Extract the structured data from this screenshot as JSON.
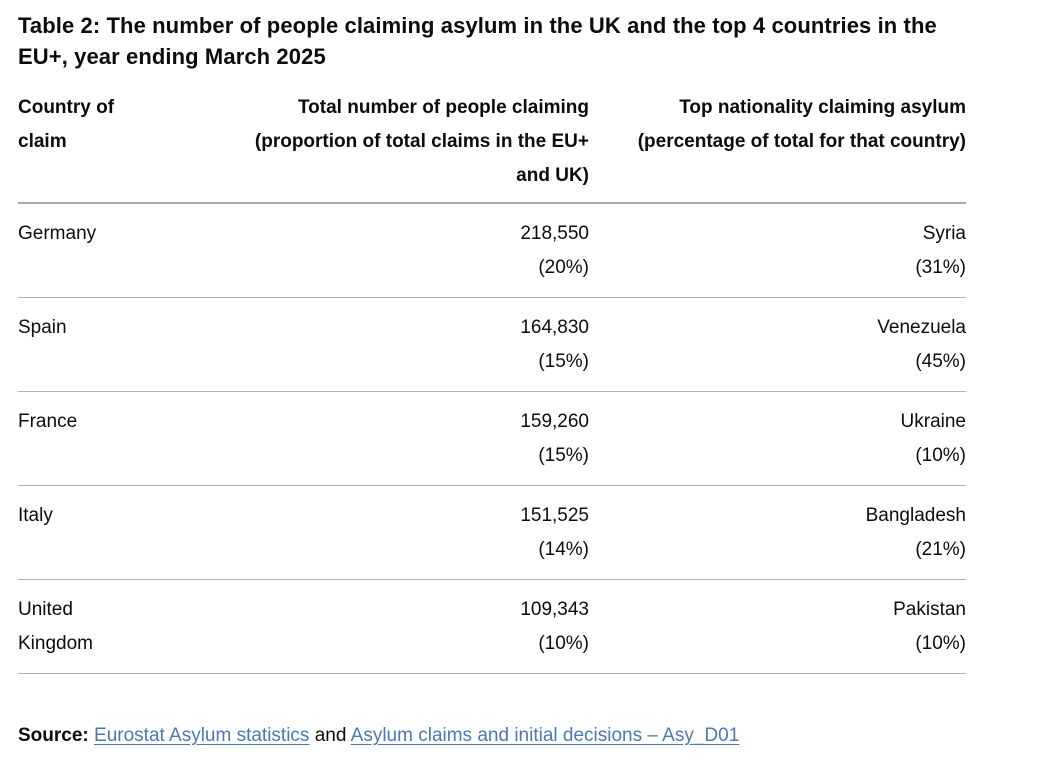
{
  "document": {
    "title": "Table 2: The number of people claiming asylum in the UK and the top 4 countries in the EU+, year ending March 2025"
  },
  "table": {
    "columns": [
      {
        "label": "Country of claim",
        "align": "left"
      },
      {
        "label": "Total number of people claiming (proportion of total claims in the EU+ and UK)",
        "align": "right"
      },
      {
        "label": "Top nationality claiming asylum (percentage of total for that country)",
        "align": "right"
      }
    ],
    "rows": [
      {
        "country": "Germany",
        "total": "218,550",
        "total_share": "(20%)",
        "nationality": "Syria",
        "nationality_share": "(31%)"
      },
      {
        "country": "Spain",
        "total": "164,830",
        "total_share": "(15%)",
        "nationality": "Venezuela",
        "nationality_share": "(45%)"
      },
      {
        "country": "France",
        "total": "159,260",
        "total_share": "(15%)",
        "nationality": "Ukraine",
        "nationality_share": "(10%)"
      },
      {
        "country": "Italy",
        "total": "151,525",
        "total_share": "(14%)",
        "nationality": "Bangladesh",
        "nationality_share": "(21%)"
      },
      {
        "country": "United Kingdom",
        "total": "109,343",
        "total_share": "(10%)",
        "nationality": "Pakistan",
        "nationality_share": "(10%)"
      }
    ]
  },
  "source": {
    "label": "Source:",
    "links": [
      {
        "text": "Eurostat Asylum statistics"
      },
      {
        "text": "Asylum claims and initial decisions – Asy_D01"
      }
    ],
    "connector": "and"
  },
  "colors": {
    "text": "#0b0c0c",
    "link_blue": "#4a79b1",
    "border_gray": "#a6a8aa"
  }
}
